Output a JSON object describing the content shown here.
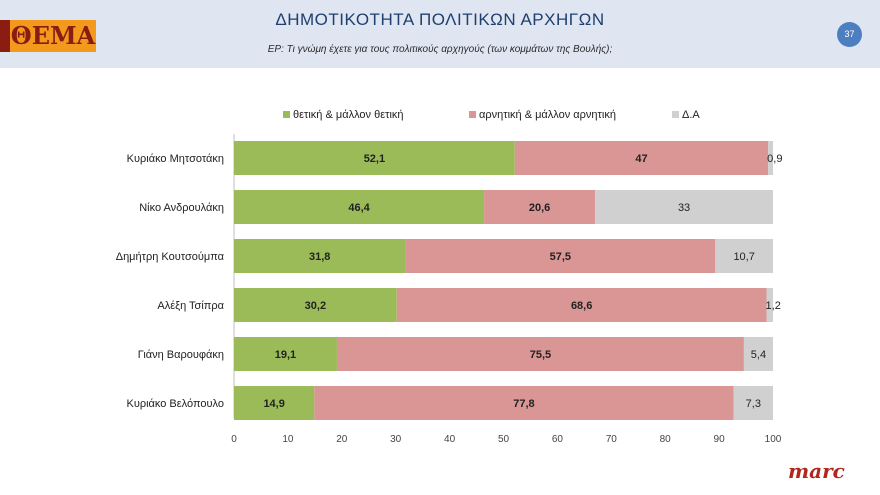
{
  "header": {
    "logo_text": "ΘΕΜΑ",
    "title": "ΔΗΜΟΤΙΚΟΤΗΤΑ ΠΟΛΙΤΙΚΩΝ ΑΡΧΗΓΩΝ",
    "subtitle": "ΕΡ: Τι γνώμη έχετε για τους πολιτικούς αρχηγούς (των κομμάτων της Βουλής);",
    "page_number": "37"
  },
  "footer": {
    "brand": "marc"
  },
  "colors": {
    "positive": "#9bbb59",
    "negative": "#d99694",
    "dk": "#d0d0d0"
  },
  "chart_data": {
    "type": "bar",
    "orientation": "horizontal",
    "stacked": true,
    "title": "ΔΗΜΟΤΙΚΟΤΗΤΑ ΠΟΛΙΤΙΚΩΝ ΑΡΧΗΓΩΝ",
    "categories": [
      "Κυριάκο Μητσοτάκη",
      "Νίκο Ανδρουλάκη",
      "Δημήτρη Κουτσούμπα",
      "Αλέξη Τσίπρα",
      "Γιάνη Βαρουφάκη",
      "Κυριάκο Βελόπουλο"
    ],
    "series": [
      {
        "name": "θετική & μάλλον θετική",
        "values": [
          52.1,
          46.4,
          31.8,
          30.2,
          19.1,
          14.9
        ],
        "labels": [
          "52,1",
          "46,4",
          "31,8",
          "30,2",
          "19,1",
          "14,9"
        ]
      },
      {
        "name": "αρνητική & μάλλον αρνητική",
        "values": [
          47,
          20.6,
          57.5,
          68.6,
          75.5,
          77.8
        ],
        "labels": [
          "47",
          "20,6",
          "57,5",
          "68,6",
          "75,5",
          "77,8"
        ]
      },
      {
        "name": "Δ.Α",
        "values": [
          0.9,
          33,
          10.7,
          1.2,
          5.4,
          7.3
        ],
        "labels": [
          "0,9",
          "33",
          "10,7",
          "1,2",
          "5,4",
          "7,3"
        ]
      }
    ],
    "xlim": [
      0,
      100
    ],
    "xticks": [
      "0",
      "10",
      "20",
      "30",
      "40",
      "50",
      "60",
      "70",
      "80",
      "90",
      "100"
    ],
    "legend_position": "top",
    "grid": false
  }
}
